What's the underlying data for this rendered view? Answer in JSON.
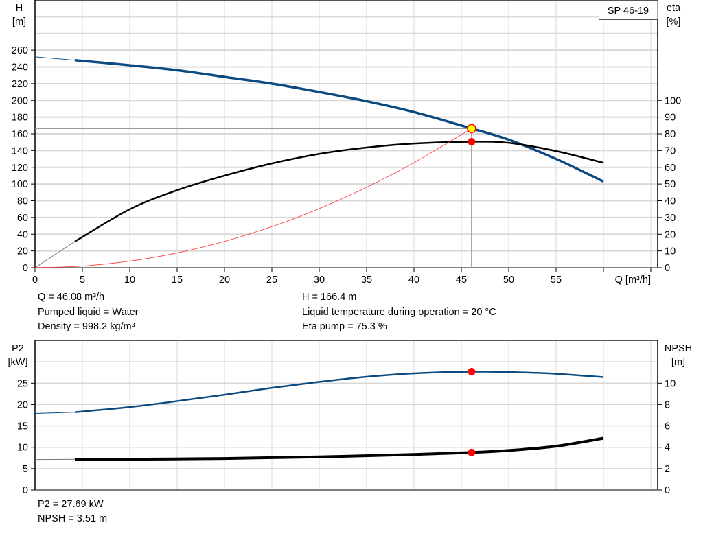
{
  "chart_data": [
    {
      "type": "line",
      "title": "SP 46-19",
      "xlabel": "Q [m³/h]",
      "ylabel": "H\n[m]",
      "y2label": "eta\n[%]",
      "xlim": [
        0,
        65
      ],
      "ylim": [
        0,
        320
      ],
      "y2lim": [
        0,
        160
      ],
      "x_ticks": [
        0,
        5,
        10,
        15,
        20,
        25,
        30,
        35,
        40,
        45,
        50,
        55
      ],
      "y_ticks": [
        0,
        20,
        40,
        60,
        80,
        100,
        120,
        140,
        160,
        180,
        200,
        220,
        240,
        260
      ],
      "y2_ticks": [
        0,
        10,
        20,
        30,
        40,
        50,
        60,
        70,
        80,
        90,
        100
      ],
      "grid": true,
      "series": [
        {
          "name": "H",
          "axis": "left",
          "color": "#0a4a80",
          "x": [
            0,
            4.2,
            10,
            15,
            20,
            25,
            30,
            35,
            40,
            45,
            46.08,
            50,
            55,
            60
          ],
          "y": [
            252,
            248,
            242,
            236,
            228,
            220,
            210,
            199,
            186,
            170,
            166.4,
            153,
            130,
            103
          ]
        },
        {
          "name": "eta",
          "axis": "right",
          "color": "#000000",
          "x": [
            0,
            4.2,
            10,
            15,
            20,
            25,
            30,
            35,
            40,
            46.08,
            50,
            55,
            60
          ],
          "y": [
            0,
            15.6,
            34.9,
            46.3,
            55,
            62.3,
            68,
            71.8,
            74.2,
            75.3,
            74.6,
            69.7,
            62.7
          ]
        },
        {
          "name": "system curve",
          "axis": "left",
          "color": "#ff3030",
          "x": [
            0,
            5,
            10,
            15,
            20,
            25,
            30,
            35,
            40,
            46.08
          ],
          "y": [
            0,
            1.96,
            7.84,
            17.6,
            31.4,
            49,
            70.6,
            96.1,
            125.5,
            166.4
          ]
        }
      ],
      "operating_point": {
        "Q": 46.08,
        "H": 166.4,
        "eta": 75.3
      }
    },
    {
      "type": "line",
      "ylabel": "P2\n[kW]",
      "y2label": "NPSH\n[m]",
      "xlim": [
        0,
        65
      ],
      "ylim": [
        0,
        35
      ],
      "y2lim": [
        0,
        14
      ],
      "y_ticks": [
        0,
        5,
        10,
        15,
        20,
        25
      ],
      "y2_ticks": [
        0,
        2,
        4,
        6,
        8,
        10
      ],
      "grid": true,
      "series": [
        {
          "name": "P2",
          "axis": "left",
          "color": "#0a4a80",
          "x": [
            0,
            4.2,
            10,
            15,
            20,
            25,
            30,
            35,
            40,
            46.08,
            50,
            55,
            60
          ],
          "y": [
            17.9,
            18.2,
            19.4,
            20.8,
            22.3,
            23.9,
            25.3,
            26.5,
            27.3,
            27.69,
            27.6,
            27.2,
            26.4
          ]
        },
        {
          "name": "NPSH",
          "axis": "right",
          "color": "#000000",
          "x": [
            0,
            4.2,
            10,
            20,
            30,
            40,
            46.08,
            50,
            55,
            60
          ],
          "y": [
            2.85,
            2.87,
            2.88,
            2.95,
            3.1,
            3.32,
            3.51,
            3.7,
            4.1,
            4.85
          ]
        }
      ],
      "operating_point": {
        "Q": 46.08,
        "P2": 27.69,
        "NPSH": 3.51
      }
    }
  ],
  "info_top": {
    "q": "Q = 46.08 m³/h",
    "liquid": "Pumped liquid = Water",
    "density": "Density = 998.2 kg/m³",
    "h": "H = 166.4 m",
    "temperature": "Liquid temperature during operation = 20 °C",
    "eta": "Eta pump = 75.3 %"
  },
  "info_bottom": {
    "p2": "P2 = 27.69 kW",
    "npsh": "NPSH = 3.51 m"
  },
  "colors": {
    "grid": "#d8d8d8",
    "curve_blue": "#0a4a80",
    "point_red": "#ff0000",
    "point_yellow": "#ffff00"
  }
}
